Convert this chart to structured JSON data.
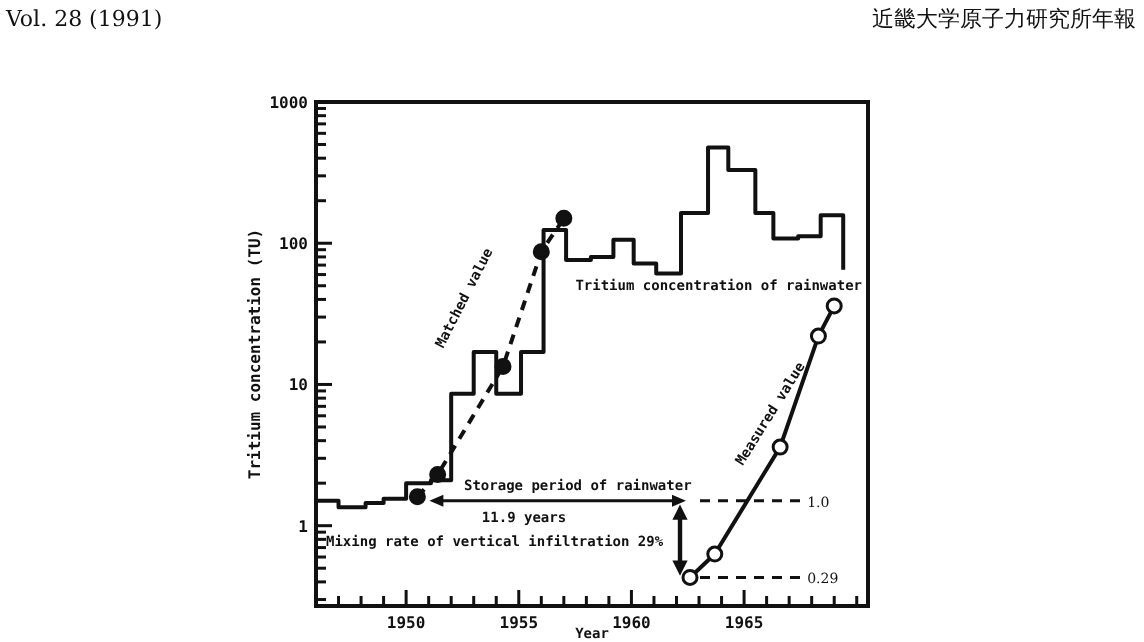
{
  "chart_data": {
    "type": "line",
    "xlabel": "Year",
    "ylabel": "Tritium concentration (TU)",
    "log": "y",
    "xlim": [
      1946,
      1970.5
    ],
    "ylim": [
      0.27,
      1000
    ],
    "xticks": [
      {
        "value": 1947,
        "label": null
      },
      {
        "value": 1948,
        "label": null
      },
      {
        "value": 1949,
        "label": null
      },
      1950,
      {
        "value": 1951,
        "label": null
      },
      {
        "value": 1952,
        "label": null
      },
      {
        "value": 1953,
        "label": null
      },
      {
        "value": 1954,
        "label": null
      },
      1955,
      {
        "value": 1956,
        "label": null
      },
      {
        "value": 1957,
        "label": null
      },
      {
        "value": 1958,
        "label": null
      },
      {
        "value": 1959,
        "label": null
      },
      1960,
      {
        "value": 1961,
        "label": null
      },
      {
        "value": 1962,
        "label": null
      },
      {
        "value": 1963,
        "label": null
      },
      {
        "value": 1964,
        "label": null
      },
      1965,
      {
        "value": 1966,
        "label": null
      },
      {
        "value": 1967,
        "label": null
      },
      {
        "value": 1968,
        "label": null
      },
      {
        "value": 1969,
        "label": null
      },
      {
        "value": 1970,
        "label": null
      }
    ],
    "yticks": [
      {
        "value": 0.3,
        "label": null
      },
      {
        "value": 0.4,
        "label": null
      },
      {
        "value": 0.5,
        "label": null
      },
      {
        "value": 0.6,
        "label": null
      },
      {
        "value": 0.7,
        "label": null
      },
      {
        "value": 0.8,
        "label": null
      },
      {
        "value": 0.9,
        "label": null
      },
      1,
      {
        "value": 2,
        "label": null
      },
      {
        "value": 3,
        "label": null
      },
      {
        "value": 4,
        "label": null
      },
      {
        "value": 5,
        "label": null
      },
      {
        "value": 6,
        "label": null
      },
      {
        "value": 7,
        "label": null
      },
      {
        "value": 8,
        "label": null
      },
      {
        "value": 9,
        "label": null
      },
      10,
      {
        "value": 20,
        "label": null
      },
      {
        "value": 30,
        "label": null
      },
      {
        "value": 40,
        "label": null
      },
      {
        "value": 50,
        "label": null
      },
      {
        "value": 60,
        "label": null
      },
      {
        "value": 70,
        "label": null
      },
      {
        "value": 80,
        "label": null
      },
      {
        "value": 90,
        "label": null
      },
      100,
      {
        "value": 200,
        "label": null
      },
      {
        "value": 300,
        "label": null
      },
      {
        "value": 400,
        "label": null
      },
      {
        "value": 500,
        "label": null
      },
      {
        "value": 600,
        "label": null
      },
      {
        "value": 700,
        "label": null
      },
      {
        "value": 800,
        "label": null
      },
      {
        "value": 900,
        "label": null
      },
      1000
    ],
    "grid": false,
    "series": [
      {
        "type": "step",
        "color": "#111111",
        "marker": "none",
        "line_style": "solid",
        "x": [
          1946,
          1947,
          1948.2,
          1949,
          1950,
          1951.1,
          1952,
          1953,
          1954,
          1955.1,
          1956.1,
          1957.1,
          1958.2,
          1959.2,
          1960.1,
          1961.1,
          1962.2,
          1963.4,
          1964.3,
          1965.5,
          1966.3,
          1967.4,
          1968.4,
          1969.4
        ],
        "values": [
          1.5,
          1.35,
          1.45,
          1.55,
          2.0,
          2.1,
          8.6,
          17,
          8.6,
          17,
          124,
          76,
          80,
          106,
          72,
          61,
          164,
          476,
          330,
          164,
          108,
          112,
          158,
          65
        ]
      },
      {
        "type": "line",
        "color": "#111111",
        "marker": "circle",
        "line_style": "dashed",
        "x": [
          1950.5,
          1951.4,
          1954.3,
          1956.0,
          1957.0
        ],
        "values": [
          1.6,
          2.3,
          13.4,
          87,
          150
        ]
      },
      {
        "type": "line",
        "color": "#111111",
        "colors": [
          "#ffffff",
          "#ffffff",
          "#ffffff",
          "#ffffff",
          "#ffffff"
        ],
        "marker": "circle",
        "line_style": "solid",
        "x": [
          1962.6,
          1963.7,
          1966.6,
          1968.3,
          1969.0
        ],
        "values": [
          0.43,
          0.63,
          3.6,
          22,
          36
        ]
      }
    ],
    "ref_lines": [
      {
        "axis": "y",
        "value": 1.5,
        "line_style": "dashed"
      },
      {
        "axis": "y",
        "value": 0.43,
        "line_style": "dashed"
      }
    ],
    "annotations": [
      "Tritium concentration of rainwater",
      "Matched value",
      "Measured value",
      "Storage period of rainwater",
      "11.9 years",
      "Mixing rate of vertical infiltration 29%",
      "Vol. 28 (1991)",
      "近畿大学原子力研究所年報",
      {
        "text": "1.0",
        "x": 1967.8,
        "y": 1.5
      },
      {
        "text": "0.29",
        "x": 1967.8,
        "y": 0.43
      }
    ]
  }
}
